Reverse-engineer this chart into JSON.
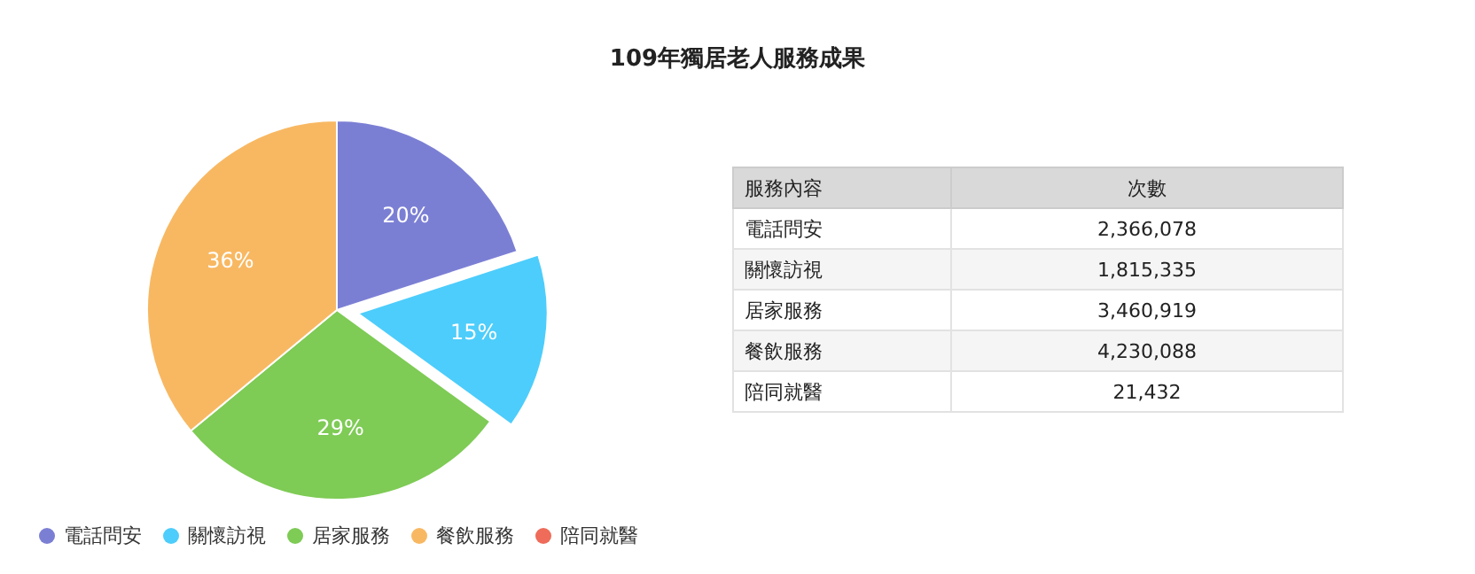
{
  "chart_data": [
    {
      "type": "pie",
      "title": "109年獨居老人服務成果",
      "categories": [
        "電話問安",
        "關懷訪視",
        "居家服務",
        "餐飲服務",
        "陪同就醫"
      ],
      "values": [
        20,
        15,
        29,
        36,
        0
      ],
      "colors": [
        "#7b7fd4",
        "#4dcdfb",
        "#7ecb55",
        "#f8b862",
        "#ee6c59"
      ],
      "value_labels": [
        "20%",
        "15%",
        "29%",
        "36%",
        null
      ],
      "legend": "bottom left"
    },
    {
      "type": "other",
      "xlabel": "服務內容",
      "ylabel": "次數",
      "categories": [
        "電話問安",
        "關懷訪視",
        "居家服務",
        "餐飲服務",
        "陪同就醫"
      ],
      "values": [
        2366078,
        1815335,
        3460919,
        4230088,
        21432
      ],
      "value_labels": [
        "2,366,078",
        "1,815,335",
        "3,460,919",
        "4,230,088",
        "21,432"
      ]
    }
  ]
}
